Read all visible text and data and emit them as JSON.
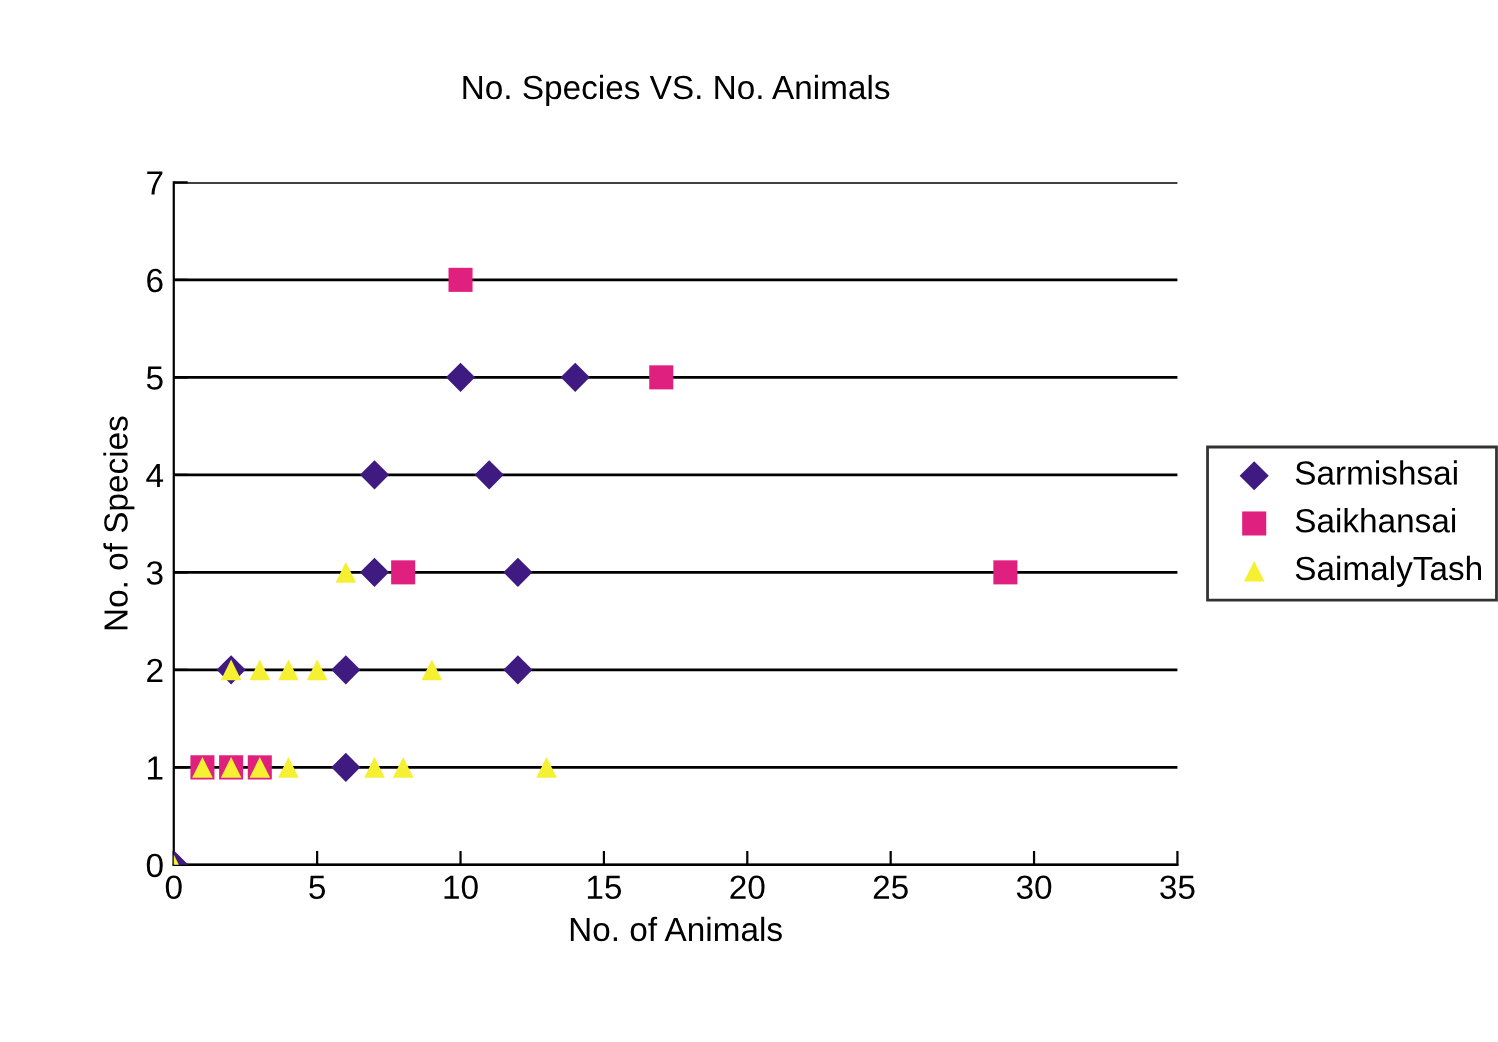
{
  "chart_data": {
    "type": "scatter",
    "title": "No. Species VS. No. Animals",
    "xlabel": "No. of Animals",
    "ylabel": "No. of Species",
    "xlim": [
      0,
      35
    ],
    "xticks": [
      0,
      5,
      10,
      15,
      20,
      25,
      30,
      35
    ],
    "ylim": [
      0,
      7
    ],
    "yticks": [
      0,
      1,
      2,
      3,
      4,
      5,
      6,
      7
    ],
    "grid": "y",
    "legend": "right",
    "series": [
      {
        "name": "Sarmishsai",
        "color": "#3f1a80",
        "marker": "diamond",
        "x": [
          0,
          10,
          14,
          7,
          11,
          7,
          12,
          6,
          12,
          2,
          6
        ],
        "values": [
          0,
          5,
          5,
          4,
          4,
          3,
          3,
          2,
          2,
          2,
          1
        ]
      },
      {
        "name": "Saikhansai",
        "color": "#e0207f",
        "marker": "square",
        "x": [
          10,
          17,
          8,
          29,
          1,
          2,
          3
        ],
        "values": [
          6,
          5,
          3,
          3,
          1,
          1,
          1
        ]
      },
      {
        "name": "SaimalyTash",
        "color": "#f5f032",
        "marker": "triangle",
        "x": [
          0,
          6,
          2,
          3,
          4,
          5,
          9,
          1,
          2,
          3,
          4,
          7,
          8,
          13
        ],
        "values": [
          0,
          3,
          2,
          2,
          2,
          2,
          2,
          1,
          1,
          1,
          1,
          1,
          1,
          1
        ]
      }
    ]
  }
}
